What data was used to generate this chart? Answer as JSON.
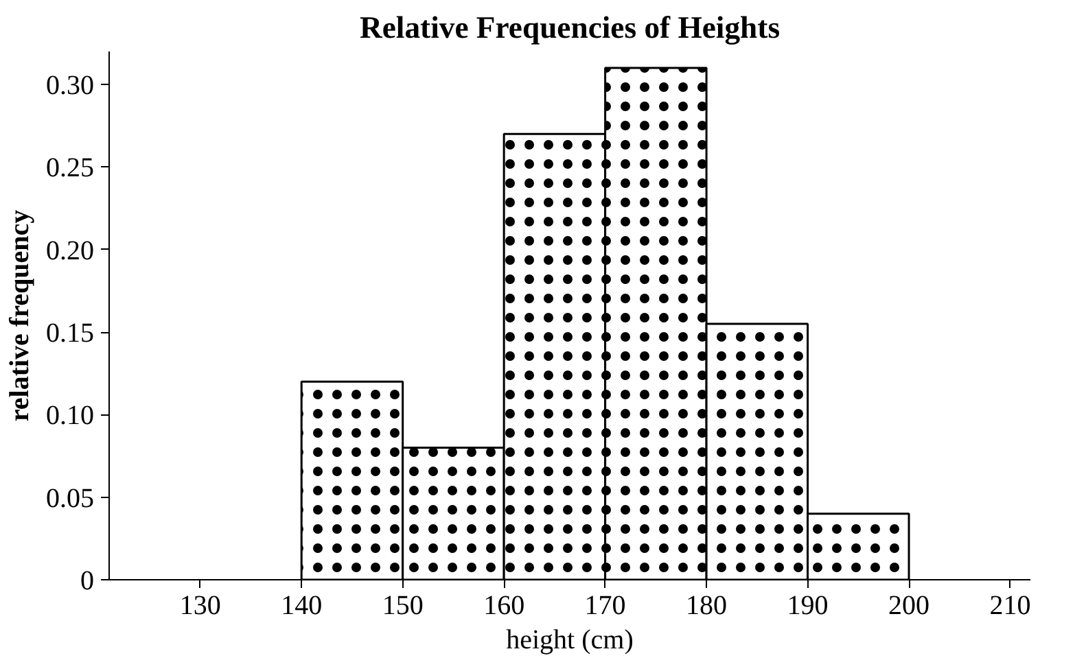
{
  "chart_data": {
    "type": "histogram",
    "title": "Relative Frequencies of Heights",
    "xlabel": "height (cm)",
    "ylabel": "relative frequency",
    "bins": [
      140,
      150,
      160,
      170,
      180,
      190,
      200
    ],
    "values": [
      0.12,
      0.08,
      0.27,
      0.31,
      0.155,
      0.04
    ],
    "color": "#ffffff",
    "xlim": [
      121,
      212
    ],
    "xticks": [
      130,
      140,
      150,
      160,
      170,
      180,
      190,
      200,
      210
    ],
    "ylim": [
      0,
      0.32
    ],
    "yticks": [
      0,
      {
        "value": 0.05,
        "label": "0.05"
      },
      {
        "value": 0.1,
        "label": "0.10"
      },
      {
        "value": 0.15,
        "label": "0.15"
      },
      {
        "value": 0.2,
        "label": "0.20"
      },
      {
        "value": 0.25,
        "label": "0.25"
      },
      {
        "value": 0.3,
        "label": "0.30"
      }
    ],
    "grid": false
  }
}
